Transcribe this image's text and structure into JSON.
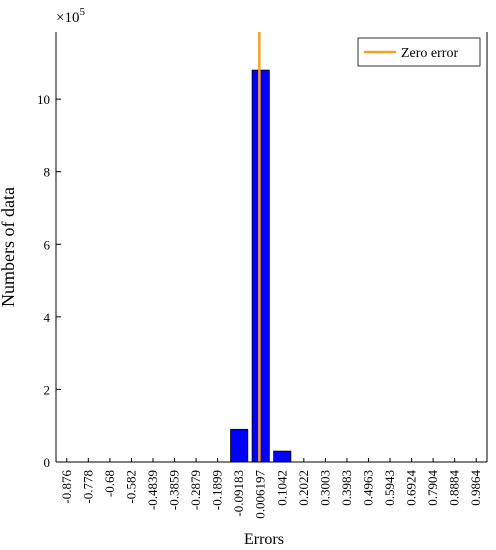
{
  "chart_data": {
    "type": "bar",
    "x_label": "Errors",
    "y_label": "Numbers of data",
    "y_exponent_label": "×10",
    "y_exponent": "5",
    "categories": [
      "-0.876",
      "-0.778",
      "-0.68",
      "-0.582",
      "-0.4839",
      "-0.3859",
      "-0.2879",
      "-0.1899",
      "-0.09183",
      "0.006197",
      "0.1042",
      "0.2022",
      "0.3003",
      "0.3983",
      "0.4963",
      "0.5943",
      "0.6924",
      "0.7904",
      "0.8884",
      "0.9864"
    ],
    "values": [
      0,
      0,
      0,
      0,
      0,
      0,
      0,
      0,
      0.9,
      10.8,
      0.3,
      0,
      0,
      0,
      0,
      0,
      0,
      0,
      0,
      0
    ],
    "color": "#0000ff",
    "ylim": [
      0,
      11.85
    ],
    "yticks": [
      0,
      2,
      4,
      6,
      8,
      10
    ],
    "reference_line": {
      "name": "Zero error",
      "color": "#f5a020"
    },
    "legend_position": "upper right"
  }
}
